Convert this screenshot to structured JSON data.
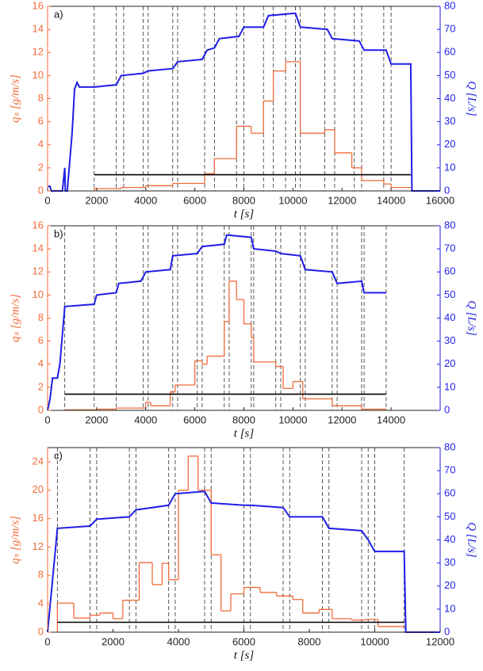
{
  "chart_data": [
    {
      "type": "line",
      "panel_label": "a)",
      "x_label": "t [s]",
      "y_label": "qₛ [g/m/s]",
      "y2_label": "Q [L/s]",
      "xlim": [
        0,
        16000
      ],
      "xticks": [
        0,
        2000,
        4000,
        6000,
        8000,
        10000,
        12000,
        14000,
        16000
      ],
      "ylim": [
        0,
        16
      ],
      "yticks": [
        0,
        2,
        4,
        6,
        8,
        10,
        12,
        14,
        16
      ],
      "y2lim": [
        0,
        80
      ],
      "y2ticks": [
        0,
        10,
        20,
        30,
        40,
        50,
        60,
        70,
        80
      ],
      "vlines": [
        1900,
        2800,
        3100,
        3900,
        4100,
        5100,
        5300,
        6400,
        6800,
        7700,
        8000,
        8800,
        9200,
        9700,
        10100,
        10300,
        11300,
        11700,
        12500,
        12800,
        13700,
        14000
      ],
      "series": [
        {
          "color": "#f26b3a",
          "step": true,
          "bins": [
            1900,
            3000,
            4000,
            5100,
            6400,
            6800,
            7700,
            8300,
            8800,
            9200,
            9700,
            10300,
            11300,
            11700,
            12400,
            12800,
            13700,
            14000,
            14800
          ],
          "values": [
            0.2,
            0.3,
            0.45,
            0.65,
            1.5,
            2.8,
            5.6,
            5.0,
            7.8,
            10.4,
            11.2,
            5.0,
            5.3,
            3.3,
            2.0,
            0.9,
            0.6,
            0.3
          ]
        },
        {
          "color": "#1f1fe6",
          "axis": "y2",
          "x": [
            0,
            100,
            150,
            600,
            700,
            720,
            800,
            1000,
            1100,
            1200,
            1300,
            1900,
            2800,
            3000,
            3900,
            4100,
            5100,
            5300,
            6300,
            6500,
            6800,
            7000,
            7800,
            8000,
            8800,
            9000,
            10100,
            10300,
            11400,
            11600,
            12700,
            12900,
            13800,
            14000,
            14800,
            14850,
            16000
          ],
          "values": [
            2,
            2,
            0,
            0,
            10,
            0,
            0,
            25,
            44,
            47,
            45,
            45,
            46,
            50,
            51,
            52,
            53,
            56,
            57,
            61,
            62,
            66,
            67,
            71,
            71,
            76,
            77,
            71,
            70,
            66,
            65,
            61,
            61,
            55,
            55,
            0,
            0
          ]
        },
        {
          "color": "#000000",
          "x": [
            1900,
            14800
          ],
          "values": [
            1.4,
            1.4
          ]
        }
      ]
    },
    {
      "type": "line",
      "panel_label": "b)",
      "x_label": "t [s]",
      "y_label": "qₛ [g/m/s]",
      "y2_label": "Q [L/s]",
      "xlim": [
        0,
        16000
      ],
      "xticks": [
        0,
        2000,
        4000,
        6000,
        8000,
        10000,
        12000,
        14000
      ],
      "ylim": [
        0,
        16
      ],
      "yticks": [
        0,
        2,
        4,
        6,
        8,
        10,
        12,
        14,
        16
      ],
      "y2lim": [
        0,
        80
      ],
      "y2ticks": [
        0,
        10,
        20,
        30,
        40,
        50,
        60,
        70,
        80
      ],
      "vlines": [
        700,
        1900,
        2800,
        3900,
        4100,
        5100,
        5300,
        6100,
        6300,
        7200,
        7400,
        8300,
        8400,
        9300,
        9500,
        10300,
        10500,
        11600,
        11800,
        12800,
        12900,
        13800
      ],
      "series": [
        {
          "color": "#f26b3a",
          "step": true,
          "bins": [
            700,
            2000,
            2800,
            4000,
            4200,
            5000,
            5200,
            6000,
            6300,
            6500,
            7200,
            7400,
            7700,
            8000,
            8300,
            8400,
            9300,
            9600,
            10000,
            10400,
            11600,
            12800,
            13800
          ],
          "values": [
            0.05,
            0.1,
            0.2,
            0.7,
            0.4,
            1.6,
            2.2,
            4.3,
            4.0,
            4.7,
            7.7,
            11.2,
            9.6,
            7.5,
            6.3,
            4.2,
            3.8,
            1.9,
            2.5,
            1.0,
            0.4,
            0.1
          ]
        },
        {
          "color": "#1f1fe6",
          "axis": "y2",
          "x": [
            0,
            100,
            200,
            400,
            500,
            700,
            1900,
            2000,
            2800,
            2900,
            3800,
            4000,
            5000,
            5100,
            6100,
            6300,
            7200,
            7300,
            8300,
            8400,
            9300,
            9500,
            10300,
            10500,
            11600,
            11800,
            12800,
            12900,
            13800
          ],
          "values": [
            0,
            5,
            14,
            14,
            20,
            45,
            46,
            50,
            51,
            55,
            56,
            60,
            61,
            67,
            68,
            71,
            72,
            76,
            75,
            70,
            69,
            68,
            67,
            61,
            60,
            55,
            56,
            51,
            51
          ]
        },
        {
          "color": "#000000",
          "x": [
            700,
            13800
          ],
          "values": [
            1.4,
            1.4
          ]
        }
      ]
    },
    {
      "type": "line",
      "panel_label": "c)",
      "x_label": "t [s]",
      "y_label": "qₛ [g/m/s]",
      "y2_label": "Q [L/s]",
      "xlim": [
        0,
        12000
      ],
      "xticks": [
        0,
        2000,
        4000,
        6000,
        8000,
        10000,
        12000
      ],
      "ylim": [
        0,
        26
      ],
      "yticks": [
        0,
        4,
        8,
        12,
        16,
        20,
        24
      ],
      "y2lim": [
        0,
        80
      ],
      "y2ticks": [
        0,
        10,
        20,
        30,
        40,
        50,
        60,
        70,
        80
      ],
      "vlines": [
        300,
        1300,
        1500,
        2500,
        2700,
        3700,
        3900,
        4800,
        5000,
        6000,
        6200,
        7200,
        7400,
        8400,
        8600,
        9600,
        9800,
        10000,
        10900
      ],
      "series": [
        {
          "color": "#f26b3a",
          "step": true,
          "bins": [
            300,
            800,
            1300,
            1600,
            2000,
            2300,
            2800,
            3200,
            3500,
            3700,
            4000,
            4300,
            4600,
            5000,
            5300,
            5600,
            6000,
            6500,
            7000,
            7500,
            7800,
            8300,
            8700,
            9300,
            9700,
            10100,
            10900
          ],
          "values": [
            4.1,
            2.0,
            2.4,
            2.7,
            1.9,
            4.5,
            9.8,
            6.7,
            9.7,
            7.4,
            20,
            24.8,
            20,
            10.9,
            3.0,
            5.4,
            6.3,
            5.6,
            5.1,
            4.6,
            2.7,
            3.2,
            1.9,
            1.7,
            1.8,
            0.8
          ]
        },
        {
          "color": "#1f1fe6",
          "axis": "y2",
          "x": [
            0,
            300,
            1300,
            1500,
            2500,
            2700,
            3700,
            3900,
            4800,
            5000,
            6000,
            6200,
            7200,
            7400,
            8400,
            8600,
            9600,
            9800,
            10000,
            10900,
            10950,
            12000
          ],
          "values": [
            0,
            45,
            46,
            49,
            50,
            53,
            55,
            60,
            61,
            56,
            55,
            55,
            54,
            50,
            50,
            45,
            44,
            40,
            35,
            35,
            0,
            0
          ]
        },
        {
          "color": "#000000",
          "x": [
            300,
            10900
          ],
          "values": [
            1.4,
            1.4
          ]
        }
      ]
    }
  ]
}
